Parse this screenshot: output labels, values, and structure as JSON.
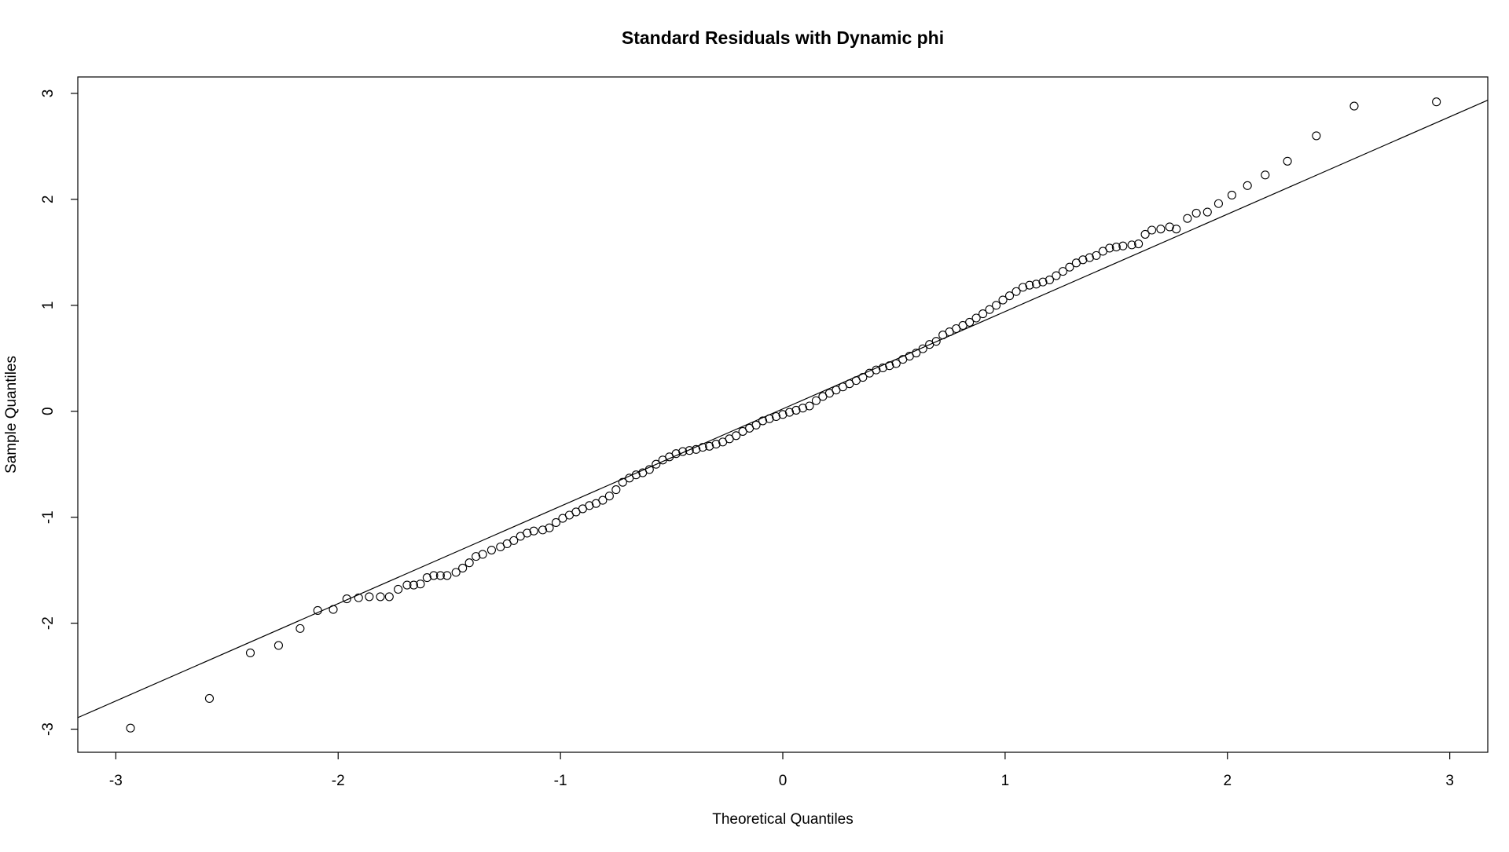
{
  "chart_data": {
    "type": "scatter",
    "title": "Standard Residuals with Dynamic phi",
    "x_label": "Theoretical Quantiles",
    "y_label": "Sample Quantiles",
    "color": "#000000",
    "xlim": [
      -3.171,
      3.171
    ],
    "ylim": [
      -3.218,
      3.155
    ],
    "xticks": [
      -3,
      -2,
      -1,
      0,
      1,
      2,
      3
    ],
    "yticks": [
      -3,
      -2,
      -1,
      0,
      1,
      2,
      3
    ],
    "x": [
      -2.934,
      -2.579,
      -2.395,
      -2.268,
      -2.171,
      -2.092,
      -2.022,
      -1.961,
      -1.908,
      -1.86,
      -1.81,
      -1.77,
      -1.73,
      -1.69,
      -1.66,
      -1.63,
      -1.6,
      -1.57,
      -1.54,
      -1.51,
      -1.47,
      -1.44,
      -1.41,
      -1.38,
      -1.35,
      -1.31,
      -1.27,
      -1.24,
      -1.21,
      -1.18,
      -1.15,
      -1.12,
      -1.08,
      -1.05,
      -1.02,
      -0.99,
      -0.96,
      -0.93,
      -0.9,
      -0.87,
      -0.84,
      -0.81,
      -0.78,
      -0.75,
      -0.72,
      -0.69,
      -0.66,
      -0.63,
      -0.6,
      -0.57,
      -0.54,
      -0.51,
      -0.48,
      -0.45,
      -0.42,
      -0.39,
      -0.36,
      -0.33,
      -0.3,
      -0.27,
      -0.24,
      -0.21,
      -0.18,
      -0.15,
      -0.12,
      -0.09,
      -0.06,
      -0.03,
      0,
      0.03,
      0.06,
      0.09,
      0.12,
      0.15,
      0.18,
      0.21,
      0.24,
      0.27,
      0.3,
      0.33,
      0.36,
      0.39,
      0.42,
      0.45,
      0.48,
      0.51,
      0.54,
      0.57,
      0.6,
      0.63,
      0.66,
      0.69,
      0.72,
      0.75,
      0.78,
      0.81,
      0.84,
      0.87,
      0.9,
      0.93,
      0.96,
      0.99,
      1.02,
      1.05,
      1.08,
      1.11,
      1.14,
      1.17,
      1.2,
      1.23,
      1.26,
      1.29,
      1.32,
      1.35,
      1.38,
      1.41,
      1.44,
      1.47,
      1.5,
      1.53,
      1.57,
      1.6,
      1.63,
      1.66,
      1.7,
      1.74,
      1.77,
      1.82,
      1.86,
      1.91,
      1.96,
      2.02,
      2.09,
      2.17,
      2.27,
      2.4,
      2.57,
      2.94
    ],
    "values": [
      -2.99,
      -2.71,
      -2.28,
      -2.21,
      -2.05,
      -1.88,
      -1.87,
      -1.77,
      -1.76,
      -1.75,
      -1.75,
      -1.75,
      -1.68,
      -1.64,
      -1.64,
      -1.63,
      -1.57,
      -1.55,
      -1.55,
      -1.55,
      -1.52,
      -1.48,
      -1.43,
      -1.37,
      -1.35,
      -1.31,
      -1.28,
      -1.25,
      -1.22,
      -1.18,
      -1.15,
      -1.13,
      -1.12,
      -1.1,
      -1.05,
      -1.01,
      -0.98,
      -0.95,
      -0.92,
      -0.89,
      -0.87,
      -0.84,
      -0.8,
      -0.74,
      -0.67,
      -0.63,
      -0.6,
      -0.58,
      -0.55,
      -0.5,
      -0.46,
      -0.43,
      -0.4,
      -0.38,
      -0.37,
      -0.36,
      -0.34,
      -0.33,
      -0.31,
      -0.29,
      -0.26,
      -0.23,
      -0.19,
      -0.16,
      -0.13,
      -0.09,
      -0.07,
      -0.05,
      -0.03,
      -0.01,
      0.01,
      0.03,
      0.05,
      0.1,
      0.14,
      0.17,
      0.2,
      0.23,
      0.26,
      0.29,
      0.32,
      0.36,
      0.39,
      0.41,
      0.43,
      0.45,
      0.49,
      0.52,
      0.55,
      0.59,
      0.63,
      0.66,
      0.72,
      0.75,
      0.78,
      0.81,
      0.84,
      0.88,
      0.92,
      0.96,
      1,
      1.05,
      1.09,
      1.13,
      1.17,
      1.19,
      1.2,
      1.22,
      1.24,
      1.28,
      1.32,
      1.36,
      1.4,
      1.43,
      1.45,
      1.47,
      1.51,
      1.54,
      1.55,
      1.56,
      1.57,
      1.58,
      1.67,
      1.71,
      1.72,
      1.74,
      1.72,
      1.82,
      1.87,
      1.88,
      1.96,
      2.04,
      2.13,
      2.23,
      2.36,
      2.6,
      2.88,
      2.92
    ],
    "reference_line": {
      "x": [
        -3.171,
        3.171
      ],
      "values": [
        -2.891,
        2.936
      ]
    }
  }
}
